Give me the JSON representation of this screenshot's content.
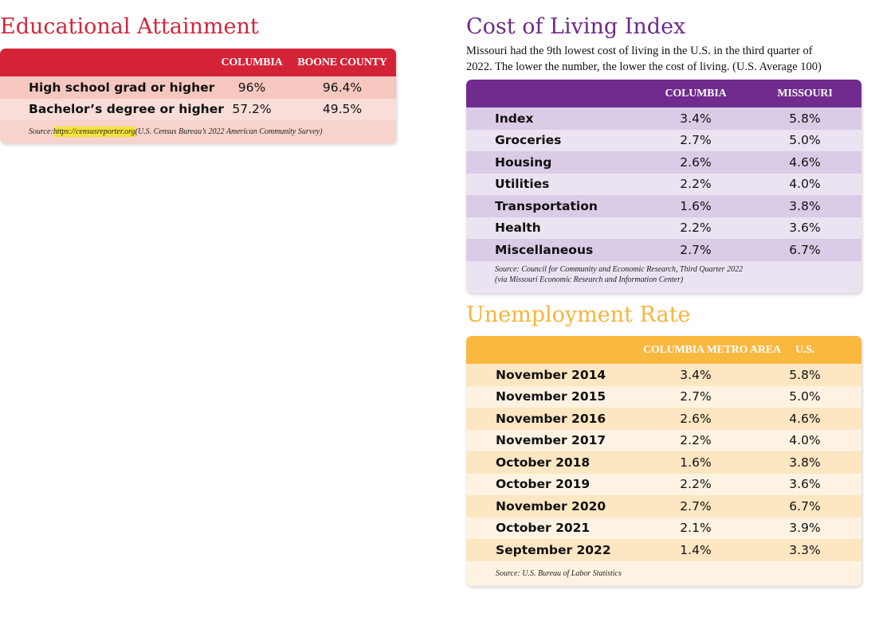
{
  "education": {
    "title": "Educational Attainment",
    "columns": [
      "COLUMBIA",
      "BOONE COUNTY"
    ],
    "rows": [
      {
        "label": "High school grad or higher",
        "columbia": "96%",
        "boone": "96.4%"
      },
      {
        "label": "Bachelor’s degree or higher",
        "columbia": "57.2%",
        "boone": "49.5%"
      }
    ],
    "source_prefix": "Source: ",
    "source_link": "https://censusreporter.org",
    "source_suffix": " (U.S. Census Bureau’s 2022 American Community Survey)"
  },
  "cost_of_living": {
    "title": "Cost of Living Index",
    "subtitle_line1": "Missouri had the 9th lowest cost of living in the U.S. in the third quarter of",
    "subtitle_line2": "2022. The lower the number, the lower the cost of living. (U.S. Average 100)",
    "columns": [
      "COLUMBIA",
      "MISSOURI"
    ],
    "rows": [
      {
        "label": "Index",
        "columbia": "3.4%",
        "missouri": "5.8%"
      },
      {
        "label": "Groceries",
        "columbia": "2.7%",
        "missouri": "5.0%"
      },
      {
        "label": "Housing",
        "columbia": "2.6%",
        "missouri": "4.6%"
      },
      {
        "label": "Utilities",
        "columbia": "2.2%",
        "missouri": "4.0%"
      },
      {
        "label": "Transportation",
        "columbia": "1.6%",
        "missouri": "3.8%"
      },
      {
        "label": "Health",
        "columbia": "2.2%",
        "missouri": "3.6%"
      },
      {
        "label": "Miscellaneous",
        "columbia": "2.7%",
        "missouri": "6.7%"
      }
    ],
    "source_line1": "Source: Council for Community and Economic Research, Third Quarter 2022",
    "source_line2": "(via Missouri Economic Research and Information Center)"
  },
  "unemployment": {
    "title": "Unemployment Rate",
    "columns": [
      "COLUMBIA METRO AREA",
      "U.S."
    ],
    "rows": [
      {
        "label": "November 2014",
        "columbia": "3.4%",
        "us": "5.8%"
      },
      {
        "label": "November 2015",
        "columbia": "2.7%",
        "us": "5.0%"
      },
      {
        "label": "November 2016",
        "columbia": "2.6%",
        "us": "4.6%"
      },
      {
        "label": "November 2017",
        "columbia": "2.2%",
        "us": "4.0%"
      },
      {
        "label": "October 2018",
        "columbia": "1.6%",
        "us": "3.8%"
      },
      {
        "label": "October 2019",
        "columbia": "2.2%",
        "us": "3.6%"
      },
      {
        "label": "November 2020",
        "columbia": "2.7%",
        "us": "6.7%"
      },
      {
        "label": "October 2021",
        "columbia": "2.1%",
        "us": "3.9%"
      },
      {
        "label": "September 2022",
        "columbia": "1.4%",
        "us": "3.3%"
      }
    ],
    "source": "Source: U.S. Bureau of Labor Statistics"
  },
  "colors": {
    "education_red": "#d42337",
    "cost_purple": "#712b8e",
    "unemployment_orange": "#fbb83f",
    "link_highlight": "#f5e43a"
  }
}
